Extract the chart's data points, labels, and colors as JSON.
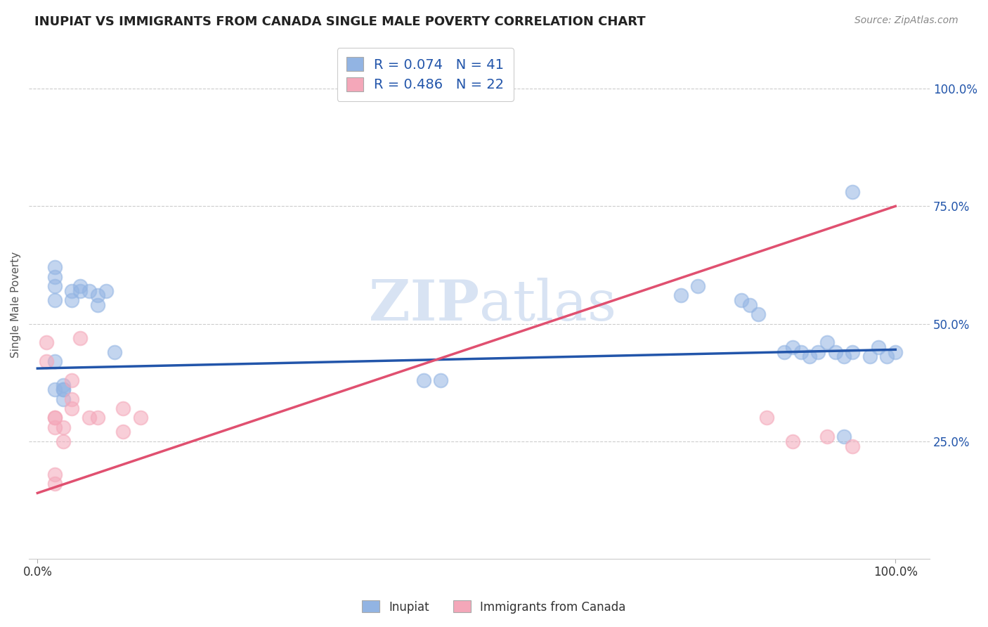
{
  "title": "INUPIAT VS IMMIGRANTS FROM CANADA SINGLE MALE POVERTY CORRELATION CHART",
  "source": "Source: ZipAtlas.com",
  "ylabel": "Single Male Poverty",
  "legend_label1": "Inupiat",
  "legend_label2": "Immigrants from Canada",
  "r1": 0.074,
  "n1": 41,
  "r2": 0.486,
  "n2": 22,
  "inupiat_x": [
    0.02,
    0.02,
    0.02,
    0.02,
    0.02,
    0.04,
    0.04,
    0.05,
    0.05,
    0.06,
    0.07,
    0.07,
    0.08,
    0.09,
    0.45,
    0.47,
    0.75,
    0.77,
    0.82,
    0.83,
    0.84,
    0.87,
    0.88,
    0.89,
    0.9,
    0.91,
    0.92,
    0.93,
    0.94,
    0.94,
    0.95,
    0.97,
    0.98,
    0.99,
    1.0,
    0.02,
    0.03,
    0.03,
    0.03,
    0.03,
    0.95
  ],
  "inupiat_y": [
    0.62,
    0.6,
    0.58,
    0.55,
    0.42,
    0.55,
    0.57,
    0.58,
    0.57,
    0.57,
    0.56,
    0.54,
    0.57,
    0.44,
    0.38,
    0.38,
    0.56,
    0.58,
    0.55,
    0.54,
    0.52,
    0.44,
    0.45,
    0.44,
    0.43,
    0.44,
    0.46,
    0.44,
    0.43,
    0.26,
    0.44,
    0.43,
    0.45,
    0.43,
    0.44,
    0.36,
    0.37,
    0.36,
    0.36,
    0.34,
    0.78
  ],
  "canada_x": [
    0.01,
    0.01,
    0.02,
    0.02,
    0.02,
    0.02,
    0.02,
    0.03,
    0.03,
    0.04,
    0.04,
    0.04,
    0.05,
    0.06,
    0.07,
    0.1,
    0.1,
    0.12,
    0.85,
    0.88,
    0.92,
    0.95
  ],
  "canada_y": [
    0.46,
    0.42,
    0.3,
    0.3,
    0.28,
    0.18,
    0.16,
    0.28,
    0.25,
    0.38,
    0.34,
    0.32,
    0.47,
    0.3,
    0.3,
    0.27,
    0.32,
    0.3,
    0.3,
    0.25,
    0.26,
    0.24
  ],
  "inupiat_color": "#92b4e3",
  "canada_color": "#f4a7b9",
  "inupiat_line_color": "#2255aa",
  "canada_line_color": "#e05070",
  "bg_color": "#ffffff",
  "grid_color": "#cccccc",
  "watermark_color": "#c8d8ee",
  "yticklabels": [
    "25.0%",
    "50.0%",
    "75.0%",
    "100.0%"
  ],
  "ytickvalues": [
    0.25,
    0.5,
    0.75,
    1.0
  ],
  "xticklabels": [
    "0.0%",
    "100.0%"
  ],
  "xtickloc": [
    0.0,
    1.0
  ],
  "inupiat_line_start_y": 0.405,
  "inupiat_line_end_y": 0.445,
  "canada_line_start_y": 0.14,
  "canada_line_end_y": 0.75
}
